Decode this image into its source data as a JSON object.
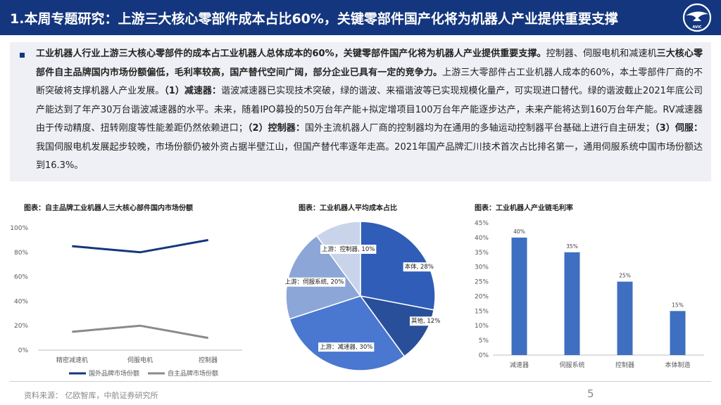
{
  "header": {
    "title": "1.本周专题研究：上游三大核心零部件成本占比60%，关键零部件国产化将为机器人产业提供重要支撑",
    "logo_text": "AVIC"
  },
  "summary": {
    "p1": "工业机器人行业上游三大核心零部件的成本占工业机器人总体成本的60%，关键零部件国产化将为机器人产业提供重要支撑。",
    "p2": "控制器、伺服电机和减速机",
    "p3": "三大核心零部件自主品牌国内市场份额偏低，毛利率较高，国产替代空间广阔，部分企业已具有一定的竞争力。",
    "p4": "上游三大零部件占工业机器人成本的60%，本土零部件厂商的不断突破将支撑机器人产业发展。",
    "p5": "（1）减速器：",
    "p6": "谐波减速器已实现技术突破，绿的谐波、来福谐波等已实现规模化量产，可实现进口替代。绿的谐波截止2021年底公司产能达到了年产30万台谐波减速器的水平。未来，随着IPO募投的50万台年产能+拟定增项目100万台年产能逐步达产，未来产能将达到160万台年产能。RV减速器由于传动精度、扭转刚度等性能差距仍然依赖进口；",
    "p7": "（2）控制器：",
    "p8": "国外主流机器人厂商的控制器均为在通用的多轴运动控制器平台基础上进行自主研发；",
    "p9": "（3）伺服：",
    "p10": "我国伺服电机发展起步较晚，市场份额仍被外资占据半壁江山，但国产替代率逐年走高。2021年国产品牌汇川技术首次占比排名第一，通用伺服系统中国市场份额达到16.3%。"
  },
  "chart_data": [
    {
      "type": "line",
      "title": "图表：自主品牌工业机器人三大核心部件国内市场份额",
      "categories": [
        "精密减速机",
        "伺服电机",
        "控制器"
      ],
      "y_ticks": [
        "0%",
        "20%",
        "40%",
        "60%",
        "80%",
        "100%"
      ],
      "ylim": [
        0,
        100
      ],
      "series": [
        {
          "name": "国外品牌市场份额",
          "values": [
            85,
            80,
            90
          ],
          "color": "#14367e"
        },
        {
          "name": "自主品牌市场份额",
          "values": [
            15,
            20,
            10
          ],
          "color": "#8a8a8a"
        }
      ],
      "legend_position": "bottom"
    },
    {
      "type": "pie",
      "title": "图表：工业机器人平均成本占比",
      "slices": [
        {
          "label": "本体, 28%",
          "value": 28,
          "color": "#2f5db8"
        },
        {
          "label": "其他, 12%",
          "value": 12,
          "color": "#2a4f9a"
        },
        {
          "label": "上游：减速器, 30%",
          "value": 30,
          "color": "#4a77d0"
        },
        {
          "label": "上游：伺服系统, 20%",
          "value": 20,
          "color": "#8da6d8"
        },
        {
          "label": "上游：控制器, 10%",
          "value": 10,
          "color": "#c9d3ea"
        }
      ]
    },
    {
      "type": "bar",
      "title": "图表：工业机器人产业链毛利率",
      "categories": [
        "减速器",
        "伺服系统",
        "控制器",
        "本体制造"
      ],
      "values": [
        40,
        35,
        25,
        15
      ],
      "value_labels": [
        "40%",
        "35%",
        "25%",
        "15%"
      ],
      "y_ticks": [
        "0%",
        "5%",
        "10%",
        "15%",
        "20%",
        "25%",
        "30%",
        "35%",
        "40%",
        "45%"
      ],
      "ylim": [
        0,
        45
      ],
      "bar_color": "#3e6fc0"
    }
  ],
  "footer": {
    "source": "资料来源： 亿欧智库，中航证券研究所",
    "page": "5"
  }
}
